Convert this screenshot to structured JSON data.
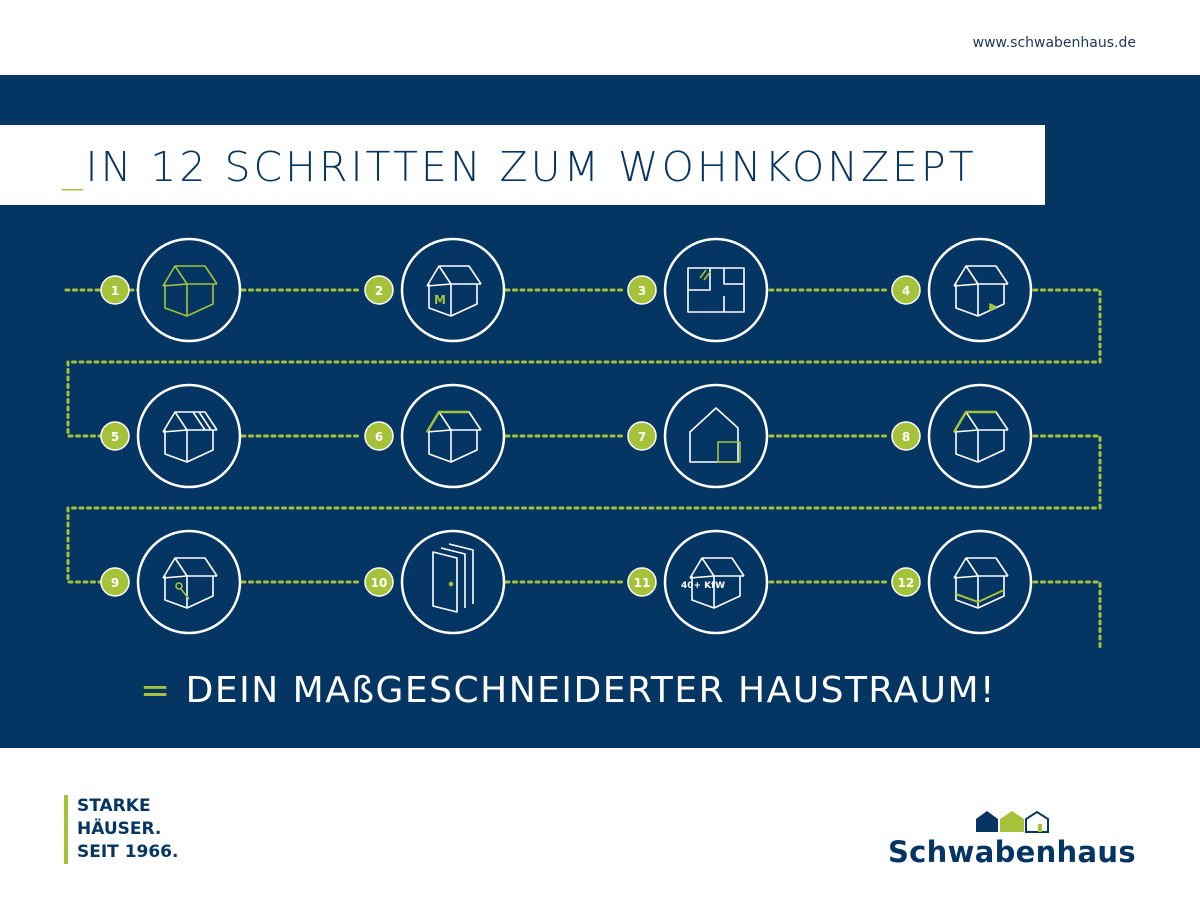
{
  "header": {
    "url": "www.schwabenhaus.de"
  },
  "title": {
    "prefix": "_",
    "text": "IN 12 SCHRITTEN ZUM WOHNKONZEPT"
  },
  "steps": [
    {
      "number": "1",
      "icon": "house-outline-green-icon"
    },
    {
      "number": "2",
      "icon": "house-m-icon",
      "label": "M"
    },
    {
      "number": "3",
      "icon": "floor-plan-icon"
    },
    {
      "number": "4",
      "icon": "house-door-icon"
    },
    {
      "number": "5",
      "icon": "house-roof-panels-icon"
    },
    {
      "number": "6",
      "icon": "house-green-roof-icon"
    },
    {
      "number": "7",
      "icon": "house-extension-icon"
    },
    {
      "number": "8",
      "icon": "house-green-gable-icon"
    },
    {
      "number": "9",
      "icon": "house-key-icon"
    },
    {
      "number": "10",
      "icon": "doors-icon"
    },
    {
      "number": "11",
      "icon": "house-kfw-icon",
      "label": "40+ KfW"
    },
    {
      "number": "12",
      "icon": "house-basement-icon"
    }
  ],
  "result": {
    "symbol": "=",
    "text": "DEIN MAßGESCHNEIDERTER HAUSTRAUM!"
  },
  "slogan": [
    "STARKE",
    "HÄUSER.",
    "SEIT 1966."
  ],
  "logo": {
    "text": "Schwabenhaus"
  },
  "colors": {
    "navy": "#053562",
    "green": "#a6c23a",
    "white": "#ffffff"
  }
}
